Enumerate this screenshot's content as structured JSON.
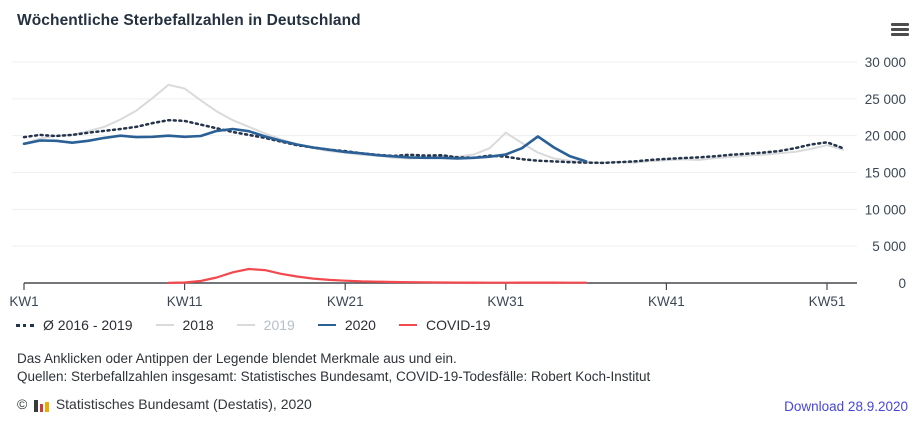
{
  "header": {
    "menu_icon": "hamburger-menu-icon"
  },
  "chart_data": {
    "type": "line",
    "title": "Wöchentliche Sterbefallzahlen in Deutschland",
    "xlabel": "",
    "ylabel": "",
    "grid": "horizontal",
    "legend_position": "bottom",
    "x_axis": {
      "range": [
        1,
        52
      ],
      "tick_labels": [
        "KW1",
        "KW11",
        "KW21",
        "KW31",
        "KW41",
        "KW51"
      ],
      "tick_weeks": [
        1,
        11,
        21,
        31,
        41,
        51
      ]
    },
    "y_axis": {
      "range": [
        0,
        30000
      ],
      "position": "right",
      "tick_labels": [
        "0",
        "5 000",
        "10 000",
        "15 000",
        "20 000",
        "25 000",
        "30 000"
      ],
      "tick_values": [
        0,
        5000,
        10000,
        15000,
        20000,
        25000,
        30000
      ]
    },
    "series": [
      {
        "name": "Ø 2016 - 2019",
        "style": "dotted",
        "color": "#24344a",
        "visible": true,
        "z": 2,
        "start_week": 1,
        "values": [
          19800,
          20100,
          19950,
          20100,
          20400,
          20650,
          20900,
          21200,
          21700,
          22100,
          22000,
          21500,
          21000,
          20500,
          20100,
          19700,
          19200,
          18700,
          18400,
          18100,
          17900,
          17600,
          17400,
          17250,
          17400,
          17300,
          17350,
          17050,
          17000,
          17300,
          17150,
          16800,
          16600,
          16500,
          16400,
          16350,
          16300,
          16400,
          16500,
          16700,
          16850,
          16950,
          17050,
          17200,
          17400,
          17550,
          17700,
          17900,
          18300,
          18800,
          19100,
          18300
        ]
      },
      {
        "name": "2018",
        "style": "solid",
        "color": "#d9dadc",
        "visible": true,
        "z": 1,
        "start_week": 1,
        "values": [
          18900,
          19600,
          20000,
          20100,
          20600,
          21200,
          22200,
          23400,
          25100,
          26900,
          26400,
          24800,
          23300,
          22100,
          21200,
          20300,
          19500,
          18800,
          18300,
          17900,
          17700,
          17400,
          17300,
          17000,
          16900,
          17000,
          17200,
          17150,
          17450,
          18300,
          20400,
          19000,
          17700,
          16900,
          16600,
          16400,
          16300,
          16450,
          16350,
          16550,
          16650,
          16800,
          16700,
          16950,
          17100,
          17300,
          17400,
          17600,
          17800,
          18200,
          18700,
          18100
        ]
      },
      {
        "name": "2019",
        "style": "solid",
        "color": "#d9dadc",
        "visible": false,
        "z": 0,
        "start_week": 1,
        "values": null
      },
      {
        "name": "2020",
        "style": "solid",
        "color": "#2b6096",
        "visible": true,
        "z": 3,
        "start_week": 1,
        "values": [
          18900,
          19350,
          19300,
          19050,
          19300,
          19700,
          20000,
          19800,
          19850,
          20000,
          19850,
          19950,
          20650,
          20900,
          20600,
          19900,
          19300,
          18800,
          18400,
          18100,
          17800,
          17600,
          17350,
          17200,
          17050,
          17000,
          17000,
          16900,
          17000,
          17150,
          17450,
          18300,
          19900,
          18400,
          17200,
          16500
        ]
      },
      {
        "name": "COVID-19",
        "style": "solid",
        "color": "#f3494e",
        "visible": true,
        "z": 4,
        "start_week": 10,
        "values": [
          15,
          70,
          270,
          750,
          1450,
          1900,
          1750,
          1250,
          880,
          600,
          420,
          310,
          220,
          170,
          130,
          110,
          90,
          70,
          60,
          50,
          45,
          45,
          50,
          60,
          55,
          45,
          40
        ]
      }
    ]
  },
  "notes": {
    "hint": "Das Anklicken oder Antippen der Legende blendet Merkmale aus und ein.",
    "sources": "Quellen: Sterbefallzahlen insgesamt: Statistisches Bundesamt, COVID-19-Todesfälle: Robert Koch-Institut"
  },
  "footer": {
    "copyright_prefix": "©",
    "publisher": "Statistisches Bundesamt (Destatis), 2020",
    "download_label": "Download 28.9.2020"
  }
}
